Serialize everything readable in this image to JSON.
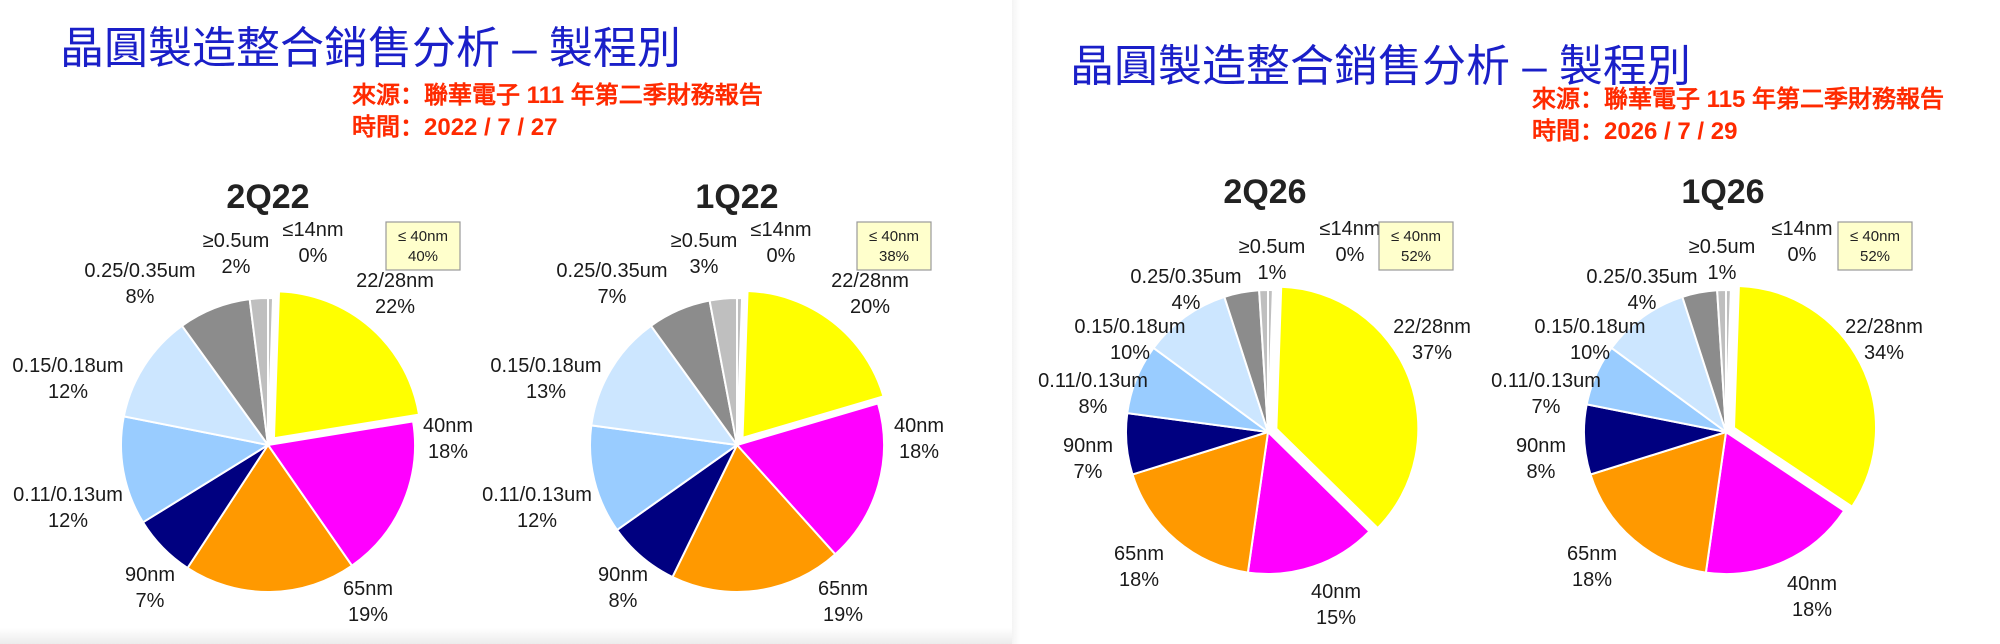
{
  "panels": [
    {
      "title": "晶圓製造整合銷售分析 – 製程別",
      "source": "來源：聯華電子 111 年第二季財務報告",
      "date": "時間：2022 /  7 / 27"
    },
    {
      "title": "晶圓製造整合銷售分析 – 製程別",
      "source": "來源：聯華電子 115 年第二季財務報告",
      "date": "時間：2026 /  7 / 29"
    }
  ],
  "chart_data": [
    {
      "type": "pie",
      "title": "2Q22",
      "badge": [
        "≤ 40nm",
        "40%"
      ],
      "colors": {
        "≤14nm": "#bfbfbf",
        "22/28nm": "#ffff00",
        "40nm": "#ff00ff",
        "65nm": "#ff9900",
        "90nm": "#000080",
        "0.11/0.13um": "#99ccff",
        "0.15/0.18um": "#cce6ff",
        "0.25/0.35um": "#8c8c8c",
        "≥0.5um": "#bfbfbf"
      },
      "slices": [
        {
          "label": "≤14nm",
          "value": "0%"
        },
        {
          "label": "22/28nm",
          "value": "22%",
          "exploded": true
        },
        {
          "label": "40nm",
          "value": "18%"
        },
        {
          "label": "65nm",
          "value": "19%"
        },
        {
          "label": "90nm",
          "value": "7%"
        },
        {
          "label": "0.11/0.13um",
          "value": "12%"
        },
        {
          "label": "0.15/0.18um",
          "value": "12%"
        },
        {
          "label": "0.25/0.35um",
          "value": "8%"
        },
        {
          "label": "≥0.5um",
          "value": "2%"
        }
      ]
    },
    {
      "type": "pie",
      "title": "1Q22",
      "badge": [
        "≤ 40nm",
        "38%"
      ],
      "slices": [
        {
          "label": "≤14nm",
          "value": "0%"
        },
        {
          "label": "22/28nm",
          "value": "20%",
          "exploded": true
        },
        {
          "label": "40nm",
          "value": "18%"
        },
        {
          "label": "65nm",
          "value": "19%"
        },
        {
          "label": "90nm",
          "value": "8%"
        },
        {
          "label": "0.11/0.13um",
          "value": "12%"
        },
        {
          "label": "0.15/0.18um",
          "value": "13%"
        },
        {
          "label": "0.25/0.35um",
          "value": "7%"
        },
        {
          "label": "≥0.5um",
          "value": "3%"
        }
      ]
    },
    {
      "type": "pie",
      "title": "2Q26",
      "badge": [
        "≤ 40nm",
        "52%"
      ],
      "slices": [
        {
          "label": "≤14nm",
          "value": "0%"
        },
        {
          "label": "22/28nm",
          "value": "37%",
          "exploded": true
        },
        {
          "label": "40nm",
          "value": "15%"
        },
        {
          "label": "65nm",
          "value": "18%"
        },
        {
          "label": "90nm",
          "value": "7%"
        },
        {
          "label": "0.11/0.13um",
          "value": "8%"
        },
        {
          "label": "0.15/0.18um",
          "value": "10%"
        },
        {
          "label": "0.25/0.35um",
          "value": "4%"
        },
        {
          "label": "≥0.5um",
          "value": "1%"
        }
      ]
    },
    {
      "type": "pie",
      "title": "1Q26",
      "badge": [
        "≤ 40nm",
        "52%"
      ],
      "slices": [
        {
          "label": "≤14nm",
          "value": "0%"
        },
        {
          "label": "22/28nm",
          "value": "34%",
          "exploded": true
        },
        {
          "label": "40nm",
          "value": "18%"
        },
        {
          "label": "65nm",
          "value": "18%"
        },
        {
          "label": "90nm",
          "value": "8%"
        },
        {
          "label": "0.11/0.13um",
          "value": "7%"
        },
        {
          "label": "0.15/0.18um",
          "value": "10%"
        },
        {
          "label": "0.25/0.35um",
          "value": "4%"
        },
        {
          "label": "≥0.5um",
          "value": "1%"
        }
      ]
    }
  ]
}
